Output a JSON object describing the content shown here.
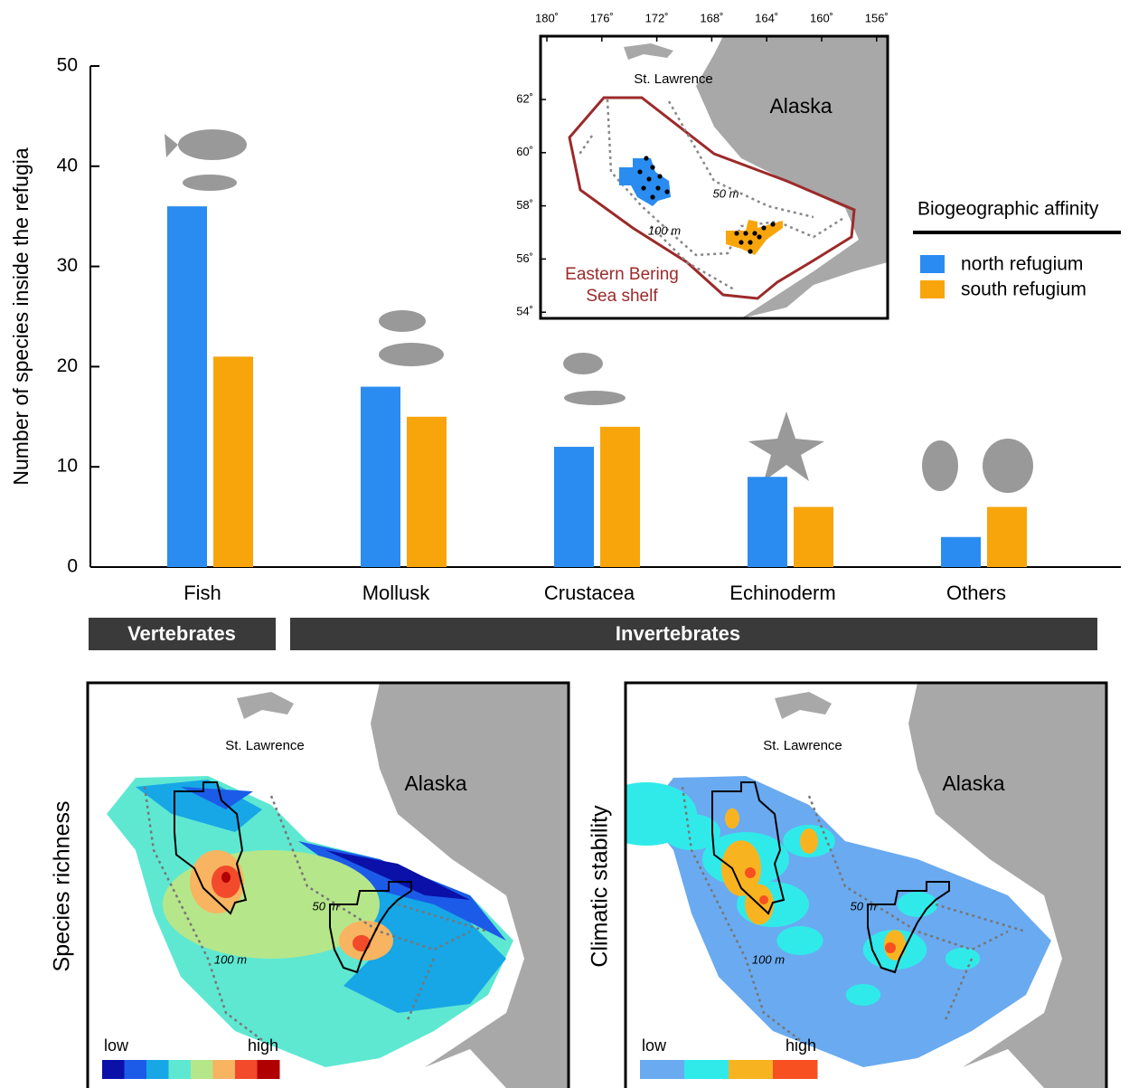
{
  "chart_data": {
    "type": "bar",
    "y_label": "Number of species inside the refugia",
    "categories": [
      "Fish",
      "Mollusk",
      "Crustacea",
      "Echinoderm",
      "Others"
    ],
    "series": [
      {
        "name": "north refugium",
        "color": "#2a8cf0",
        "values": [
          36,
          18,
          12,
          9,
          3
        ]
      },
      {
        "name": "south refugium",
        "color": "#f8a50c",
        "values": [
          21,
          15,
          14,
          6,
          6
        ]
      }
    ],
    "ylim": [
      0,
      50
    ],
    "yticks": [
      0,
      10,
      20,
      30,
      40,
      50
    ],
    "legend_title": "Biogeographic affinity",
    "groups": [
      "Vertebrates",
      "Invertebrates"
    ]
  },
  "inset_map": {
    "lon_ticks": [
      {
        "value": 180,
        "label": "180˚"
      },
      {
        "value": 176,
        "label": "176˚"
      },
      {
        "value": 172,
        "label": "172˚"
      },
      {
        "value": 168,
        "label": "168˚"
      },
      {
        "value": 164,
        "label": "164˚"
      },
      {
        "value": 160,
        "label": "160˚"
      },
      {
        "value": 156,
        "label": "156˚"
      }
    ],
    "lat_ticks": [
      {
        "value": 62,
        "label": "62˚"
      },
      {
        "value": 60,
        "label": "60˚"
      },
      {
        "value": 58,
        "label": "58˚"
      },
      {
        "value": 56,
        "label": "56˚"
      },
      {
        "value": 54,
        "label": "54˚"
      }
    ],
    "island": "St. Lawrence",
    "land": "Alaska",
    "depth_50": "50 m",
    "depth_100": "100 m",
    "region": [
      "Eastern Bering",
      "Sea shelf"
    ]
  },
  "panels": [
    {
      "title": "Species richness",
      "island": "St. Lawrence",
      "land": "Alaska",
      "depth_50": "50 m",
      "depth_100": "100 m",
      "low": "low",
      "high": "high",
      "colors": [
        "#0a10a8",
        "#1b5be8",
        "#17a6e6",
        "#5ee8d2",
        "#b6e68a",
        "#f8b460",
        "#f24a2a",
        "#b00000"
      ]
    },
    {
      "title": "Climatic stability",
      "island": "St. Lawrence",
      "land": "Alaska",
      "depth_50": "50 m",
      "depth_100": "100 m",
      "low": "low",
      "high": "high",
      "colors": [
        "#6aaaf0",
        "#30eaea",
        "#f8b420",
        "#f85020"
      ]
    }
  ]
}
